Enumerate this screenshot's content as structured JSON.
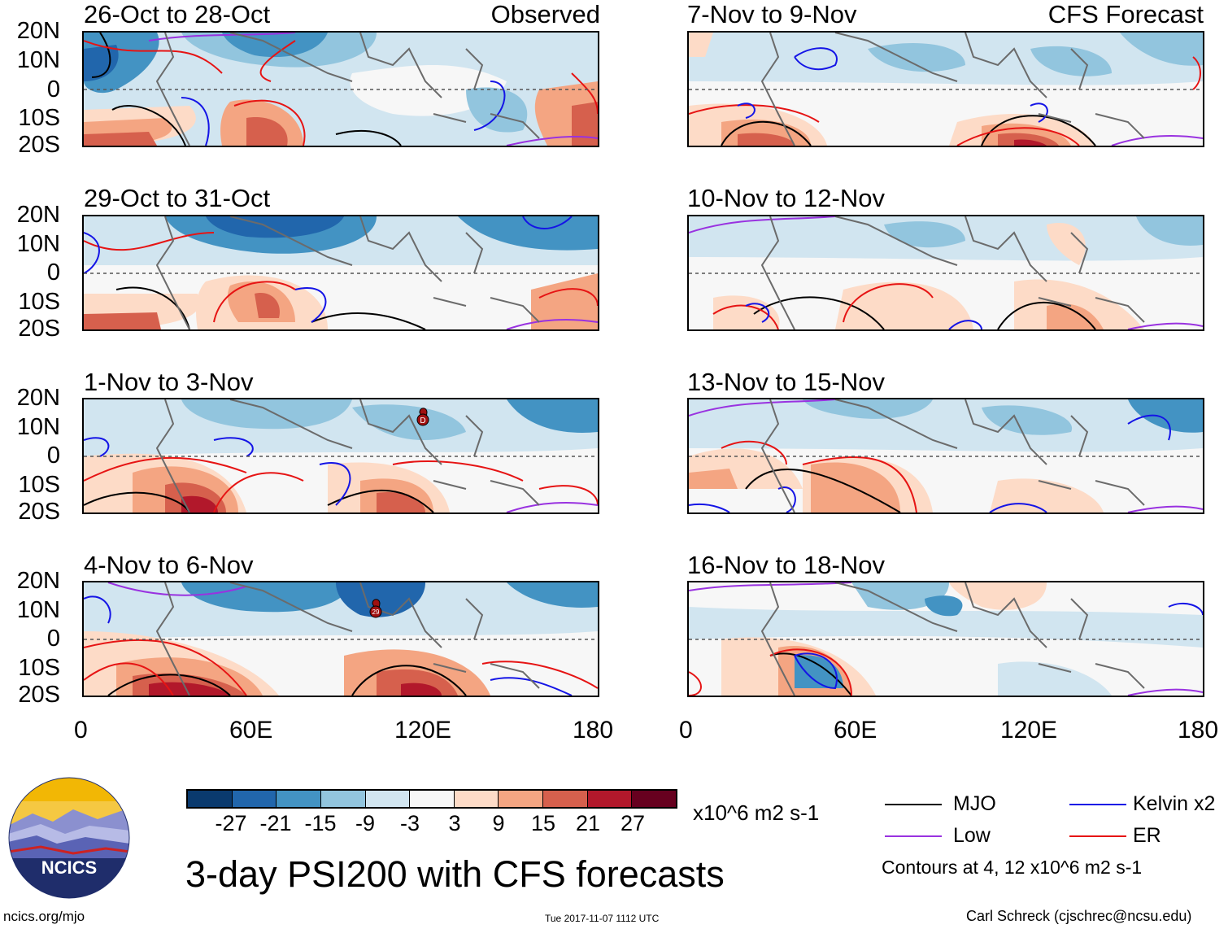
{
  "colors": {
    "mjo": "#000000",
    "kelvin": "#1414e6",
    "low": "#9932e0",
    "er": "#e61414",
    "land": "#6b6b6b",
    "equator": "#555555",
    "colorbar": [
      "#0a3a6e",
      "#2166ac",
      "#4393c3",
      "#92c5de",
      "#d1e5f0",
      "#f7f7f7",
      "#fddbc7",
      "#f4a582",
      "#d6604d",
      "#b2182b",
      "#67001f"
    ]
  },
  "panels": {
    "observed": [
      {
        "title": "26-Oct to 28-Oct",
        "tag": "Observed"
      },
      {
        "title": "29-Oct to 31-Oct",
        "tag": ""
      },
      {
        "title": "1-Nov to 3-Nov",
        "tag": ""
      },
      {
        "title": "4-Nov to 6-Nov",
        "tag": ""
      }
    ],
    "forecast": [
      {
        "title": "7-Nov to 9-Nov",
        "tag": "CFS Forecast"
      },
      {
        "title": "10-Nov to 12-Nov",
        "tag": ""
      },
      {
        "title": "13-Nov to 15-Nov",
        "tag": ""
      },
      {
        "title": "16-Nov to 18-Nov",
        "tag": ""
      }
    ]
  },
  "lat_labels": [
    "20N",
    "10N",
    "0",
    "10S",
    "20S"
  ],
  "lon_labels": [
    "0",
    "60E",
    "120E",
    "180"
  ],
  "storm_markers": {
    "p3": "D",
    "p4": "29"
  },
  "colorbar": {
    "labels": [
      "-27",
      "-21",
      "-15",
      "-9",
      "-3",
      "3",
      "9",
      "15",
      "21",
      "27"
    ],
    "units": "x10^6 m2 s-1"
  },
  "legend": {
    "mjo": "MJO",
    "kelvin": "Kelvin x2",
    "low": "Low",
    "er": "ER",
    "note": "Contours at 4, 12 x10^6 m2 s-1"
  },
  "logo": {
    "text": "NCICS"
  },
  "title": "3-day PSI200 with CFS forecasts",
  "footer": {
    "left": "ncics.org/mjo",
    "center": "Tue 2017-11-07 1112 UTC",
    "right": "Carl Schreck (cjschrec@ncsu.edu)"
  }
}
